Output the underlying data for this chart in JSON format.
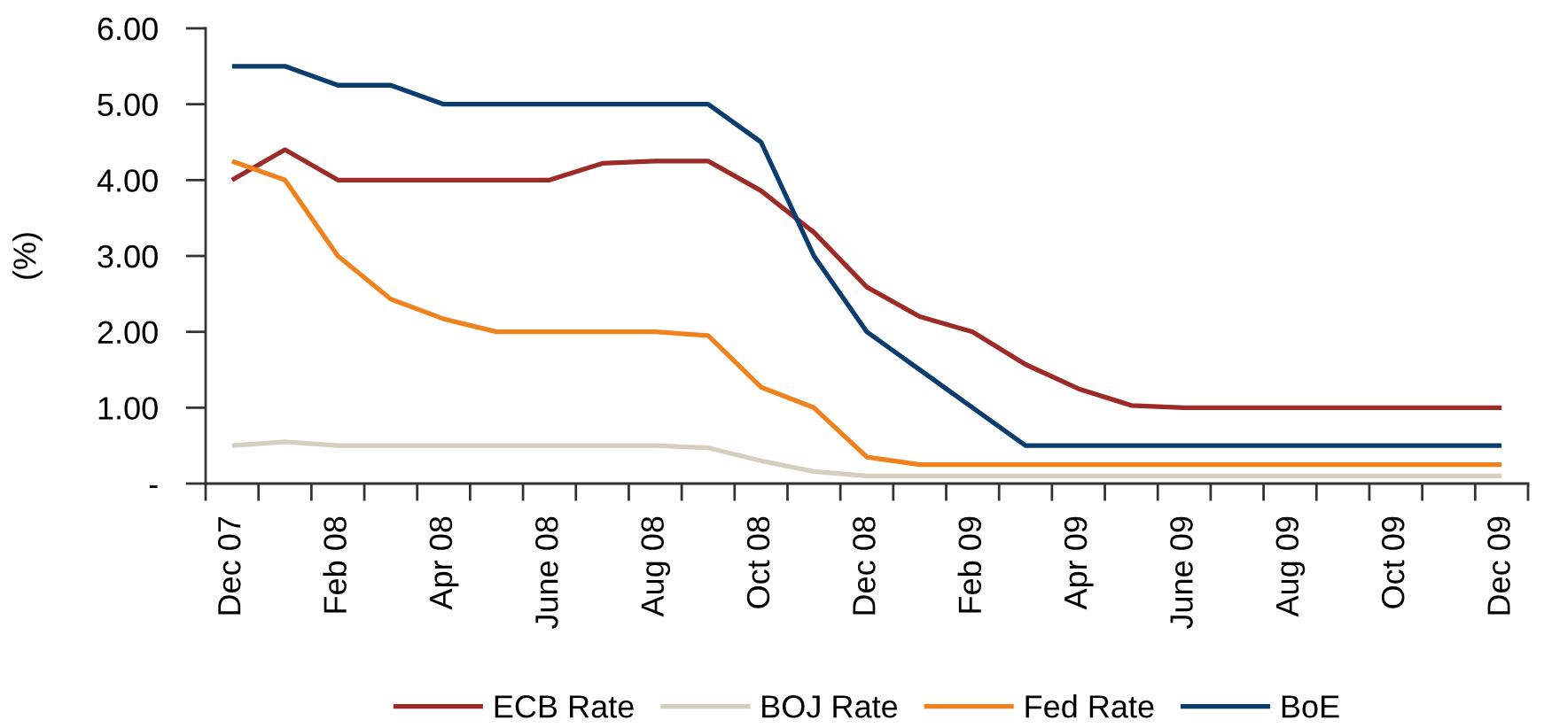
{
  "chart_data": {
    "type": "line",
    "categories": [
      "Dec 07",
      null,
      "Feb 08",
      null,
      "Apr 08",
      null,
      "June 08",
      null,
      "Aug 08",
      null,
      "Oct 08",
      null,
      "Dec 08",
      null,
      "Feb 09",
      null,
      "Apr 09",
      null,
      "June 09",
      null,
      "Aug 09",
      null,
      "Oct 09",
      null,
      "Dec 09"
    ],
    "ylabel": "(%)",
    "ylim": [
      0,
      6
    ],
    "yticks": [
      {
        "value": 0,
        "label": "-"
      },
      {
        "value": 1,
        "label": "1.00"
      },
      {
        "value": 2,
        "label": "2.00"
      },
      {
        "value": 3,
        "label": "3.00"
      },
      {
        "value": 4,
        "label": "4.00"
      },
      {
        "value": 5,
        "label": "5.00"
      },
      {
        "value": 6,
        "label": "6.00"
      }
    ],
    "grid": false,
    "legend": "bottom",
    "line_style": "solid",
    "series": [
      {
        "name": "ECB Rate",
        "color": "#9c2a26",
        "values": [
          4.0,
          4.4,
          4.0,
          4.0,
          4.0,
          4.0,
          4.0,
          4.22,
          4.25,
          4.25,
          3.86,
          3.31,
          2.59,
          2.2,
          2.0,
          1.57,
          1.25,
          1.03,
          1.0,
          1.0,
          1.0,
          1.0,
          1.0,
          1.0,
          1.0
        ]
      },
      {
        "name": "BOJ Rate",
        "color": "#d3d0c0",
        "values": [
          0.5,
          0.55,
          0.5,
          0.5,
          0.5,
          0.5,
          0.5,
          0.5,
          0.5,
          0.47,
          0.3,
          0.16,
          0.1,
          0.1,
          0.1,
          0.1,
          0.1,
          0.1,
          0.1,
          0.1,
          0.1,
          0.1,
          0.1,
          0.1,
          0.1
        ]
      },
      {
        "name": "Fed Rate",
        "color": "#f0821e",
        "values": [
          4.25,
          4.0,
          3.0,
          2.43,
          2.17,
          2.0,
          2.0,
          2.0,
          2.0,
          1.95,
          1.27,
          1.0,
          0.35,
          0.25,
          0.25,
          0.25,
          0.25,
          0.25,
          0.25,
          0.25,
          0.25,
          0.25,
          0.25,
          0.25,
          0.25
        ]
      },
      {
        "name": "BoE",
        "color": "#0a3d6e",
        "values": [
          5.5,
          5.5,
          5.25,
          5.25,
          5.0,
          5.0,
          5.0,
          5.0,
          5.0,
          5.0,
          4.5,
          3.0,
          2.0,
          1.5,
          1.0,
          0.5,
          0.5,
          0.5,
          0.5,
          0.5,
          0.5,
          0.5,
          0.5,
          0.5,
          0.5
        ]
      }
    ]
  }
}
